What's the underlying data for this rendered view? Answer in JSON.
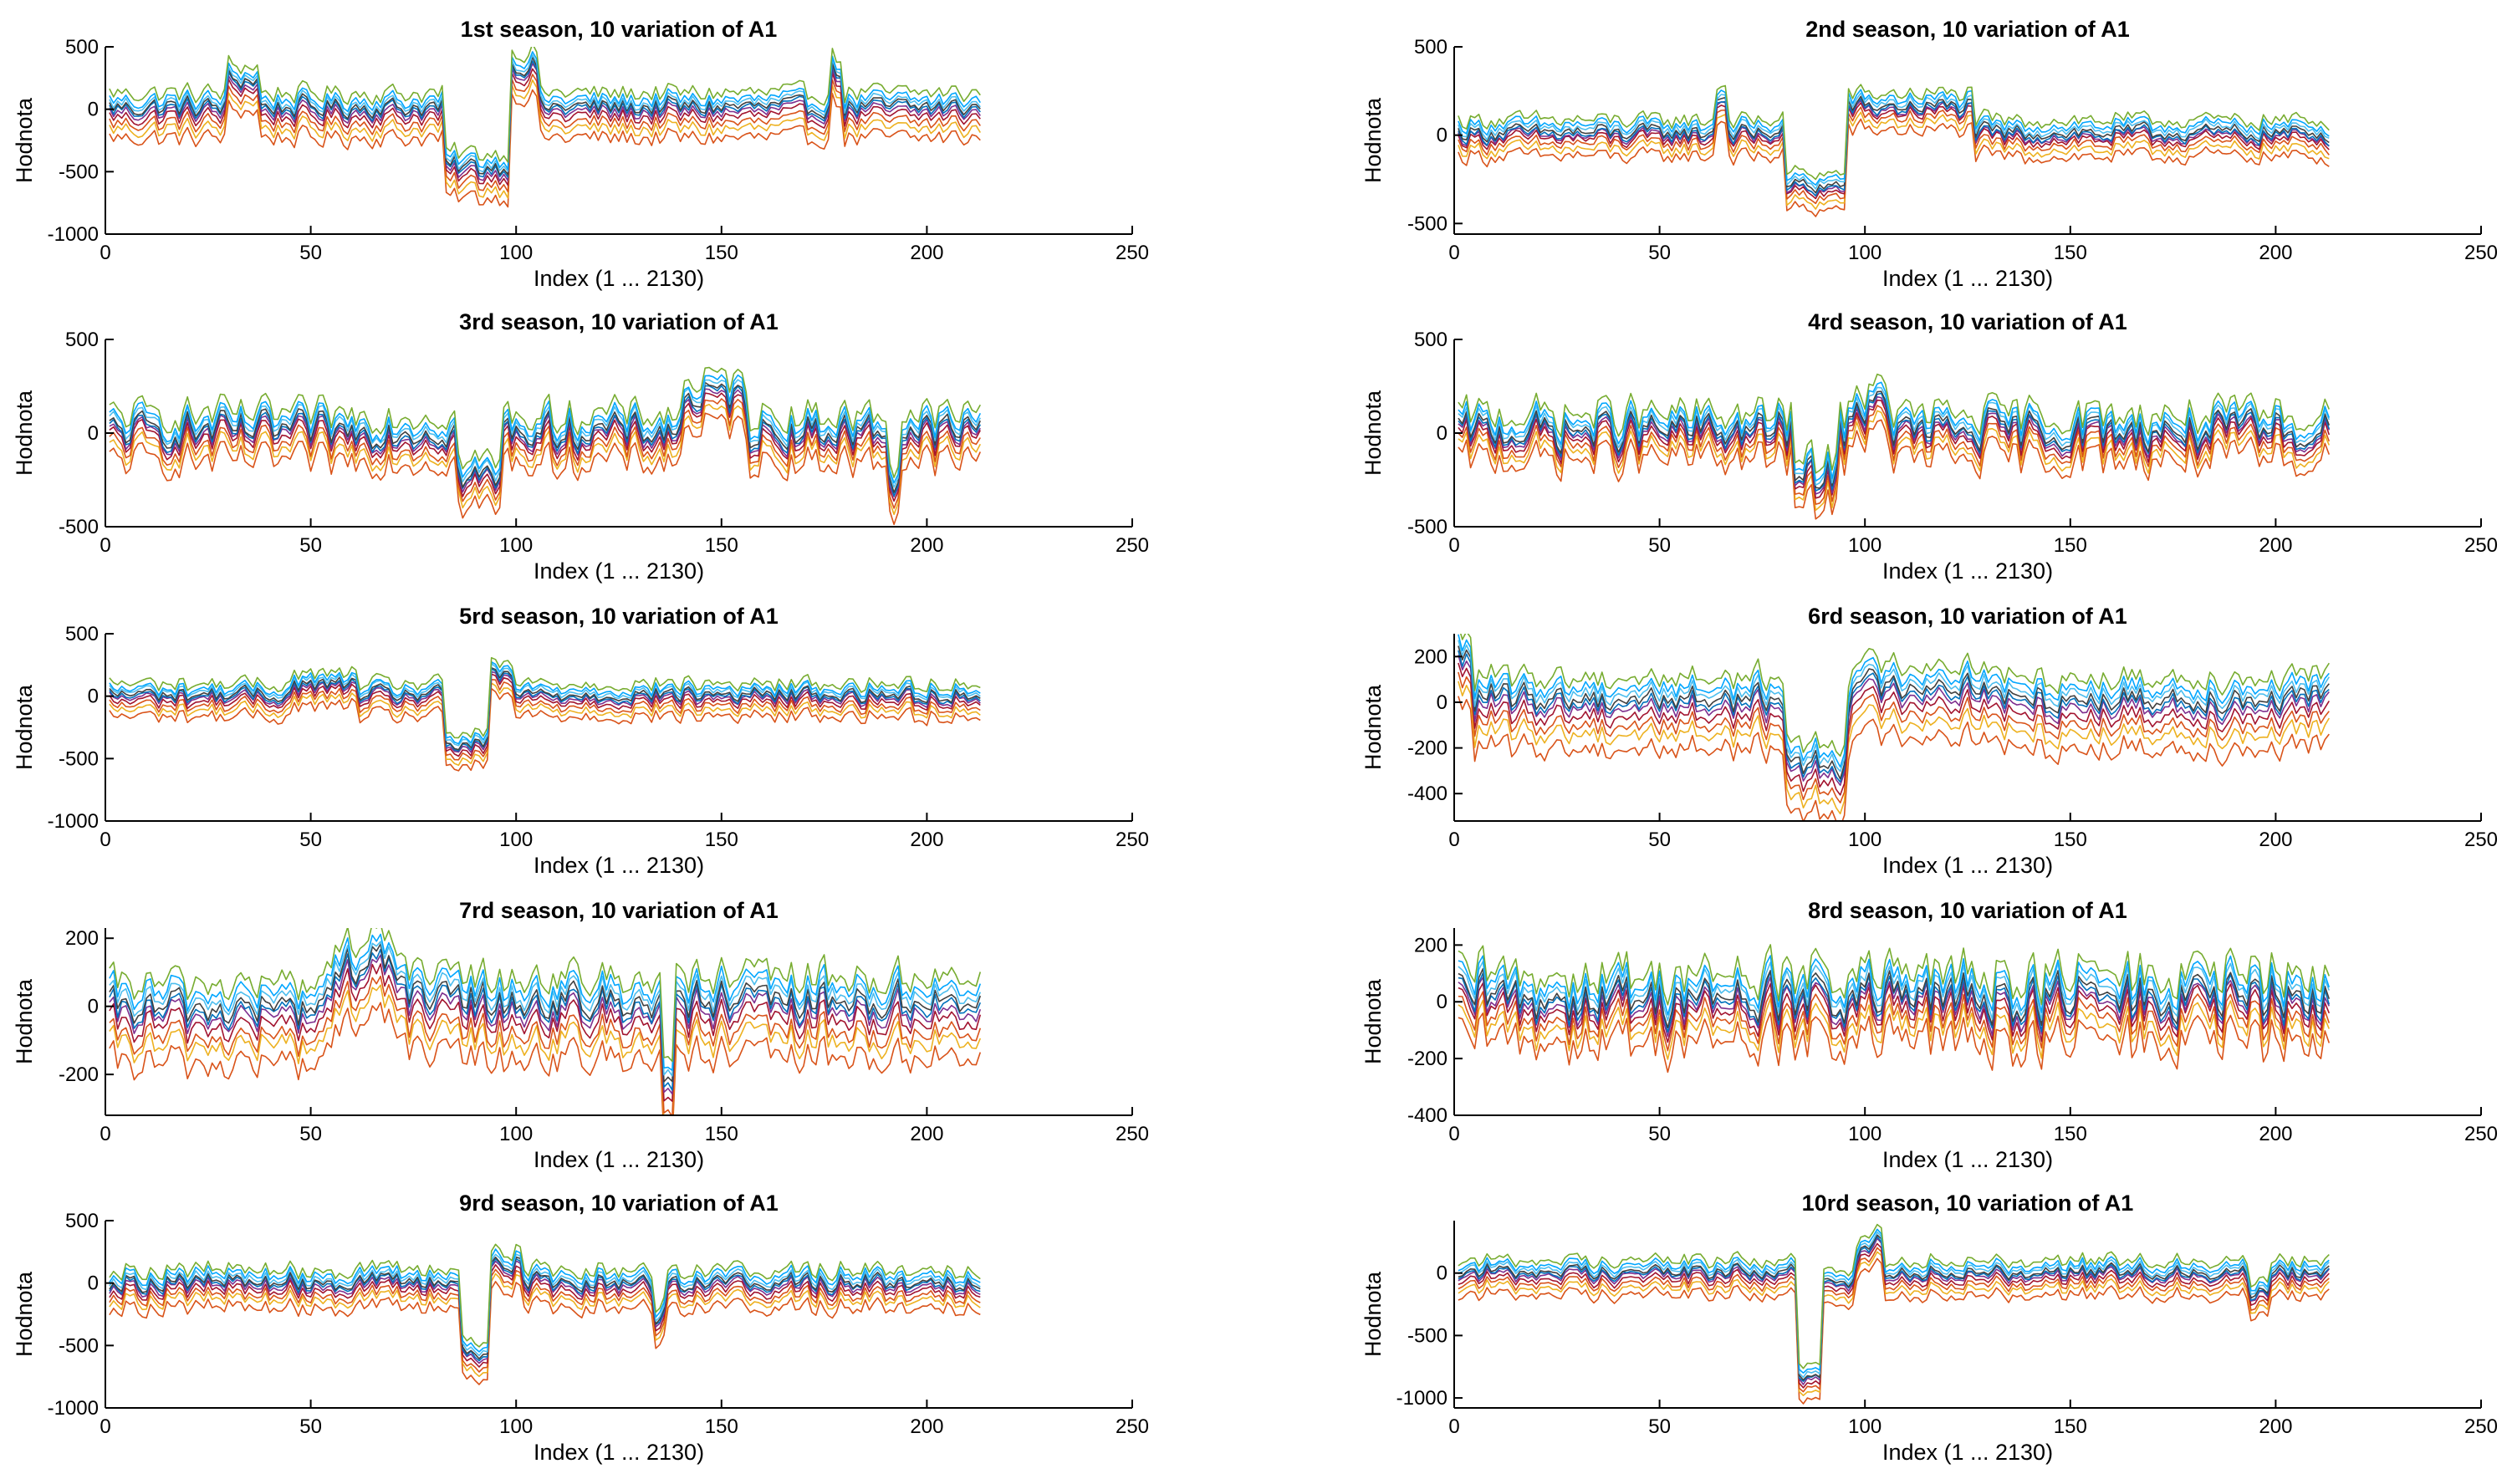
{
  "chart_data": [
    {
      "type": "line",
      "title": "1st season, 10 variation of A1",
      "xlabel": "Index (1 ... 2130)",
      "ylabel": "Hodnota",
      "xlim": [
        0,
        250
      ],
      "ylim": [
        -1000,
        500
      ],
      "xticks": [
        0,
        50,
        100,
        150,
        200,
        250
      ],
      "yticks": [
        -1000,
        -500,
        0,
        500
      ],
      "n_points": 213,
      "series_count": 10,
      "profile": {
        "base": 0,
        "noise": 75,
        "events": [
          {
            "start": 29,
            "end": 36,
            "value": 220
          },
          {
            "start": 82,
            "end": 97,
            "value": -480
          },
          {
            "start": 98,
            "end": 104,
            "value": 330
          },
          {
            "start": 176,
            "end": 178,
            "value": 280
          }
        ]
      },
      "series_offsets": [
        -230,
        -160,
        -110,
        -60,
        -25,
        0,
        20,
        45,
        75,
        130
      ],
      "series_colors": [
        "#D95319",
        "#EDB120",
        "#D95319",
        "#A2142F",
        "#7E2F8E",
        "#0072BD",
        "#404040",
        "#4DBEEE",
        "#00A6FF",
        "#77AC30"
      ]
    },
    {
      "type": "line",
      "title": "2nd season, 10 variation of A1",
      "xlabel": "Index (1 ... 2130)",
      "ylabel": "Hodnota",
      "xlim": [
        0,
        250
      ],
      "ylim": [
        -560,
        500
      ],
      "xticks": [
        0,
        50,
        100,
        150,
        200,
        250
      ],
      "yticks": [
        -500,
        0,
        500
      ],
      "n_points": 213,
      "series_count": 10,
      "profile": {
        "base": 0,
        "noise": 45,
        "events": [
          {
            "start": 63,
            "end": 65,
            "value": 200
          },
          {
            "start": 80,
            "end": 94,
            "value": -300
          },
          {
            "start": 95,
            "end": 125,
            "value": 150
          }
        ]
      },
      "series_offsets": [
        -120,
        -80,
        -50,
        -25,
        -10,
        0,
        15,
        35,
        55,
        85
      ],
      "series_colors": [
        "#D95319",
        "#EDB120",
        "#D95319",
        "#A2142F",
        "#7E2F8E",
        "#0072BD",
        "#404040",
        "#4DBEEE",
        "#00A6FF",
        "#77AC30"
      ]
    },
    {
      "type": "line",
      "title": "3rd season, 10 variation of A1",
      "xlabel": "Index (1 ... 2130)",
      "ylabel": "Hodnota",
      "xlim": [
        0,
        250
      ],
      "ylim": [
        -500,
        500
      ],
      "xticks": [
        0,
        50,
        100,
        150,
        200,
        250
      ],
      "yticks": [
        -500,
        0,
        500
      ],
      "n_points": 213,
      "series_count": 10,
      "profile": {
        "base": 0,
        "noise": 85,
        "events": [
          {
            "start": 85,
            "end": 95,
            "value": -250
          },
          {
            "start": 140,
            "end": 155,
            "value": 180
          },
          {
            "start": 190,
            "end": 192,
            "value": -260
          }
        ]
      },
      "series_offsets": [
        -150,
        -100,
        -70,
        -35,
        -15,
        0,
        15,
        40,
        60,
        100
      ],
      "series_colors": [
        "#D95319",
        "#EDB120",
        "#D95319",
        "#A2142F",
        "#7E2F8E",
        "#0072BD",
        "#404040",
        "#4DBEEE",
        "#00A6FF",
        "#77AC30"
      ]
    },
    {
      "type": "line",
      "title": "4rd season, 10 variation of A1",
      "xlabel": "Index (1 ... 2130)",
      "ylabel": "Hodnota",
      "xlim": [
        0,
        250
      ],
      "ylim": [
        -500,
        500
      ],
      "xticks": [
        0,
        50,
        100,
        150,
        200,
        250
      ],
      "yticks": [
        -500,
        0,
        500
      ],
      "n_points": 213,
      "series_count": 10,
      "profile": {
        "base": 0,
        "noise": 95,
        "events": [
          {
            "start": 82,
            "end": 92,
            "value": -250
          },
          {
            "start": 95,
            "end": 105,
            "value": 120
          }
        ]
      },
      "series_offsets": [
        -140,
        -95,
        -65,
        -35,
        -15,
        0,
        15,
        40,
        60,
        100
      ],
      "series_colors": [
        "#D95319",
        "#EDB120",
        "#D95319",
        "#A2142F",
        "#7E2F8E",
        "#0072BD",
        "#404040",
        "#4DBEEE",
        "#00A6FF",
        "#77AC30"
      ]
    },
    {
      "type": "line",
      "title": "5rd season, 10 variation of A1",
      "xlabel": "Index (1 ... 2130)",
      "ylabel": "Hodnota",
      "xlim": [
        0,
        250
      ],
      "ylim": [
        -1000,
        500
      ],
      "xticks": [
        0,
        50,
        100,
        150,
        200,
        250
      ],
      "yticks": [
        -1000,
        -500,
        0,
        500
      ],
      "n_points": 213,
      "series_count": 10,
      "profile": {
        "base": 0,
        "noise": 60,
        "events": [
          {
            "start": 82,
            "end": 92,
            "value": -400
          },
          {
            "start": 93,
            "end": 98,
            "value": 150
          },
          {
            "start": 45,
            "end": 60,
            "value": 80
          }
        ]
      },
      "series_offsets": [
        -160,
        -110,
        -75,
        -40,
        -15,
        0,
        15,
        40,
        60,
        100
      ],
      "series_colors": [
        "#D95319",
        "#EDB120",
        "#D95319",
        "#A2142F",
        "#7E2F8E",
        "#0072BD",
        "#404040",
        "#4DBEEE",
        "#00A6FF",
        "#77AC30"
      ]
    },
    {
      "type": "line",
      "title": "6rd season, 10 variation of A1",
      "xlabel": "Index (1 ... 2130)",
      "ylabel": "Hodnota",
      "xlim": [
        0,
        250
      ],
      "ylim": [
        -520,
        300
      ],
      "xticks": [
        0,
        50,
        100,
        150,
        200,
        250
      ],
      "yticks": [
        -400,
        -200,
        0,
        200
      ],
      "n_points": 213,
      "series_count": 10,
      "profile": {
        "base": 0,
        "noise": 55,
        "events": [
          {
            "start": 0,
            "end": 3,
            "value": 180
          },
          {
            "start": 80,
            "end": 94,
            "value": -280
          },
          {
            "start": 96,
            "end": 130,
            "value": 60
          }
        ]
      },
      "series_offsets": [
        -200,
        -135,
        -95,
        -55,
        -20,
        0,
        20,
        45,
        70,
        110
      ],
      "series_colors": [
        "#D95319",
        "#EDB120",
        "#D95319",
        "#A2142F",
        "#7E2F8E",
        "#0072BD",
        "#404040",
        "#4DBEEE",
        "#00A6FF",
        "#77AC30"
      ]
    },
    {
      "type": "line",
      "title": "7rd season, 10 variation of A1",
      "xlabel": "Index (1 ... 2130)",
      "ylabel": "Hodnota",
      "xlim": [
        0,
        250
      ],
      "ylim": [
        -320,
        230
      ],
      "xticks": [
        0,
        50,
        100,
        150,
        200,
        250
      ],
      "yticks": [
        -200,
        0,
        200
      ],
      "n_points": 213,
      "series_count": 10,
      "profile": {
        "base": 0,
        "noise": 50,
        "events": [
          {
            "start": 0,
            "end": 50,
            "value": -20
          },
          {
            "start": 55,
            "end": 72,
            "value": 110
          },
          {
            "start": 135,
            "end": 137,
            "value": -220
          }
        ]
      },
      "series_offsets": [
        -150,
        -100,
        -75,
        -40,
        -15,
        0,
        15,
        35,
        55,
        85
      ],
      "series_colors": [
        "#D95319",
        "#EDB120",
        "#D95319",
        "#A2142F",
        "#7E2F8E",
        "#0072BD",
        "#404040",
        "#4DBEEE",
        "#00A6FF",
        "#77AC30"
      ]
    },
    {
      "type": "line",
      "title": "8rd season, 10 variation of A1",
      "xlabel": "Index (1 ... 2130)",
      "ylabel": "Hodnota",
      "xlim": [
        0,
        250
      ],
      "ylim": [
        -400,
        260
      ],
      "xticks": [
        0,
        50,
        100,
        150,
        200,
        250
      ],
      "yticks": [
        -400,
        -200,
        0,
        200
      ],
      "n_points": 213,
      "series_count": 10,
      "profile": {
        "base": 0,
        "noise": 85,
        "events": []
      },
      "series_offsets": [
        -140,
        -95,
        -65,
        -35,
        -15,
        0,
        15,
        40,
        60,
        95
      ],
      "series_colors": [
        "#D95319",
        "#EDB120",
        "#D95319",
        "#A2142F",
        "#7E2F8E",
        "#0072BD",
        "#404040",
        "#4DBEEE",
        "#00A6FF",
        "#77AC30"
      ]
    },
    {
      "type": "line",
      "title": "9rd season, 10 variation of A1",
      "xlabel": "Index (1 ... 2130)",
      "ylabel": "Hodnota",
      "xlim": [
        0,
        250
      ],
      "ylim": [
        -1000,
        500
      ],
      "xticks": [
        0,
        50,
        100,
        150,
        200,
        250
      ],
      "yticks": [
        -1000,
        -500,
        0,
        500
      ],
      "n_points": 213,
      "series_count": 10,
      "profile": {
        "base": 0,
        "noise": 70,
        "events": [
          {
            "start": 86,
            "end": 92,
            "value": -560
          },
          {
            "start": 93,
            "end": 100,
            "value": 150
          },
          {
            "start": 133,
            "end": 135,
            "value": -250
          }
        ]
      },
      "series_offsets": [
        -190,
        -125,
        -90,
        -50,
        -20,
        0,
        15,
        40,
        70,
        110
      ],
      "series_colors": [
        "#D95319",
        "#EDB120",
        "#D95319",
        "#A2142F",
        "#7E2F8E",
        "#0072BD",
        "#404040",
        "#4DBEEE",
        "#00A6FF",
        "#77AC30"
      ]
    },
    {
      "type": "line",
      "title": "10rd season, 10 variation of A1",
      "xlabel": "Index (1 ... 2130)",
      "ylabel": "Hodnota",
      "xlim": [
        0,
        250
      ],
      "ylim": [
        -1080,
        420
      ],
      "xticks": [
        0,
        50,
        100,
        150,
        200,
        250
      ],
      "yticks": [
        -1000,
        -500,
        0
      ],
      "n_points": 213,
      "series_count": 10,
      "profile": {
        "base": 0,
        "noise": 55,
        "events": [
          {
            "start": 83,
            "end": 88,
            "value": -850
          },
          {
            "start": 89,
            "end": 97,
            "value": -100
          },
          {
            "start": 97,
            "end": 103,
            "value": 230
          },
          {
            "start": 193,
            "end": 197,
            "value": -180
          }
        ]
      },
      "series_offsets": [
        -170,
        -115,
        -80,
        -45,
        -15,
        0,
        15,
        40,
        65,
        105
      ],
      "series_colors": [
        "#D95319",
        "#EDB120",
        "#D95319",
        "#A2142F",
        "#7E2F8E",
        "#0072BD",
        "#404040",
        "#4DBEEE",
        "#00A6FF",
        "#77AC30"
      ]
    }
  ]
}
